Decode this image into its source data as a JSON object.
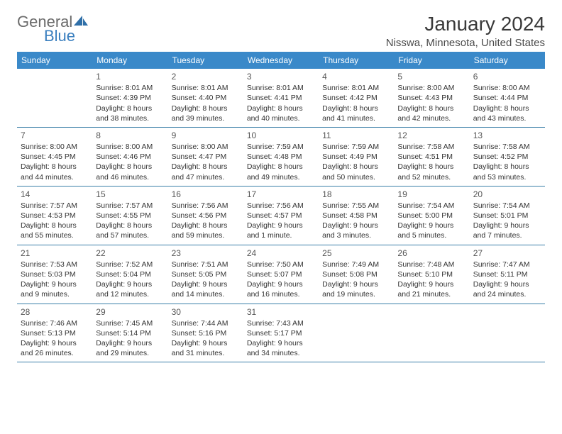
{
  "logo": {
    "text_general": "General",
    "text_blue": "Blue",
    "sail_color": "#2f6fa8"
  },
  "header": {
    "month_title": "January 2024",
    "location": "Nisswa, Minnesota, United States"
  },
  "colors": {
    "header_bg": "#3a89c9",
    "header_text": "#ffffff",
    "cell_border": "#3a7fa8",
    "body_text": "#333333",
    "background": "#ffffff"
  },
  "day_names": [
    "Sunday",
    "Monday",
    "Tuesday",
    "Wednesday",
    "Thursday",
    "Friday",
    "Saturday"
  ],
  "first_weekday_index": 1,
  "days_in_month": 31,
  "days": {
    "1": {
      "sunrise": "8:01 AM",
      "sunset": "4:39 PM",
      "daylight": "8 hours and 38 minutes."
    },
    "2": {
      "sunrise": "8:01 AM",
      "sunset": "4:40 PM",
      "daylight": "8 hours and 39 minutes."
    },
    "3": {
      "sunrise": "8:01 AM",
      "sunset": "4:41 PM",
      "daylight": "8 hours and 40 minutes."
    },
    "4": {
      "sunrise": "8:01 AM",
      "sunset": "4:42 PM",
      "daylight": "8 hours and 41 minutes."
    },
    "5": {
      "sunrise": "8:00 AM",
      "sunset": "4:43 PM",
      "daylight": "8 hours and 42 minutes."
    },
    "6": {
      "sunrise": "8:00 AM",
      "sunset": "4:44 PM",
      "daylight": "8 hours and 43 minutes."
    },
    "7": {
      "sunrise": "8:00 AM",
      "sunset": "4:45 PM",
      "daylight": "8 hours and 44 minutes."
    },
    "8": {
      "sunrise": "8:00 AM",
      "sunset": "4:46 PM",
      "daylight": "8 hours and 46 minutes."
    },
    "9": {
      "sunrise": "8:00 AM",
      "sunset": "4:47 PM",
      "daylight": "8 hours and 47 minutes."
    },
    "10": {
      "sunrise": "7:59 AM",
      "sunset": "4:48 PM",
      "daylight": "8 hours and 49 minutes."
    },
    "11": {
      "sunrise": "7:59 AM",
      "sunset": "4:49 PM",
      "daylight": "8 hours and 50 minutes."
    },
    "12": {
      "sunrise": "7:58 AM",
      "sunset": "4:51 PM",
      "daylight": "8 hours and 52 minutes."
    },
    "13": {
      "sunrise": "7:58 AM",
      "sunset": "4:52 PM",
      "daylight": "8 hours and 53 minutes."
    },
    "14": {
      "sunrise": "7:57 AM",
      "sunset": "4:53 PM",
      "daylight": "8 hours and 55 minutes."
    },
    "15": {
      "sunrise": "7:57 AM",
      "sunset": "4:55 PM",
      "daylight": "8 hours and 57 minutes."
    },
    "16": {
      "sunrise": "7:56 AM",
      "sunset": "4:56 PM",
      "daylight": "8 hours and 59 minutes."
    },
    "17": {
      "sunrise": "7:56 AM",
      "sunset": "4:57 PM",
      "daylight": "9 hours and 1 minute."
    },
    "18": {
      "sunrise": "7:55 AM",
      "sunset": "4:58 PM",
      "daylight": "9 hours and 3 minutes."
    },
    "19": {
      "sunrise": "7:54 AM",
      "sunset": "5:00 PM",
      "daylight": "9 hours and 5 minutes."
    },
    "20": {
      "sunrise": "7:54 AM",
      "sunset": "5:01 PM",
      "daylight": "9 hours and 7 minutes."
    },
    "21": {
      "sunrise": "7:53 AM",
      "sunset": "5:03 PM",
      "daylight": "9 hours and 9 minutes."
    },
    "22": {
      "sunrise": "7:52 AM",
      "sunset": "5:04 PM",
      "daylight": "9 hours and 12 minutes."
    },
    "23": {
      "sunrise": "7:51 AM",
      "sunset": "5:05 PM",
      "daylight": "9 hours and 14 minutes."
    },
    "24": {
      "sunrise": "7:50 AM",
      "sunset": "5:07 PM",
      "daylight": "9 hours and 16 minutes."
    },
    "25": {
      "sunrise": "7:49 AM",
      "sunset": "5:08 PM",
      "daylight": "9 hours and 19 minutes."
    },
    "26": {
      "sunrise": "7:48 AM",
      "sunset": "5:10 PM",
      "daylight": "9 hours and 21 minutes."
    },
    "27": {
      "sunrise": "7:47 AM",
      "sunset": "5:11 PM",
      "daylight": "9 hours and 24 minutes."
    },
    "28": {
      "sunrise": "7:46 AM",
      "sunset": "5:13 PM",
      "daylight": "9 hours and 26 minutes."
    },
    "29": {
      "sunrise": "7:45 AM",
      "sunset": "5:14 PM",
      "daylight": "9 hours and 29 minutes."
    },
    "30": {
      "sunrise": "7:44 AM",
      "sunset": "5:16 PM",
      "daylight": "9 hours and 31 minutes."
    },
    "31": {
      "sunrise": "7:43 AM",
      "sunset": "5:17 PM",
      "daylight": "9 hours and 34 minutes."
    }
  },
  "labels": {
    "sunrise_prefix": "Sunrise: ",
    "sunset_prefix": "Sunset: ",
    "daylight_prefix": "Daylight: "
  }
}
